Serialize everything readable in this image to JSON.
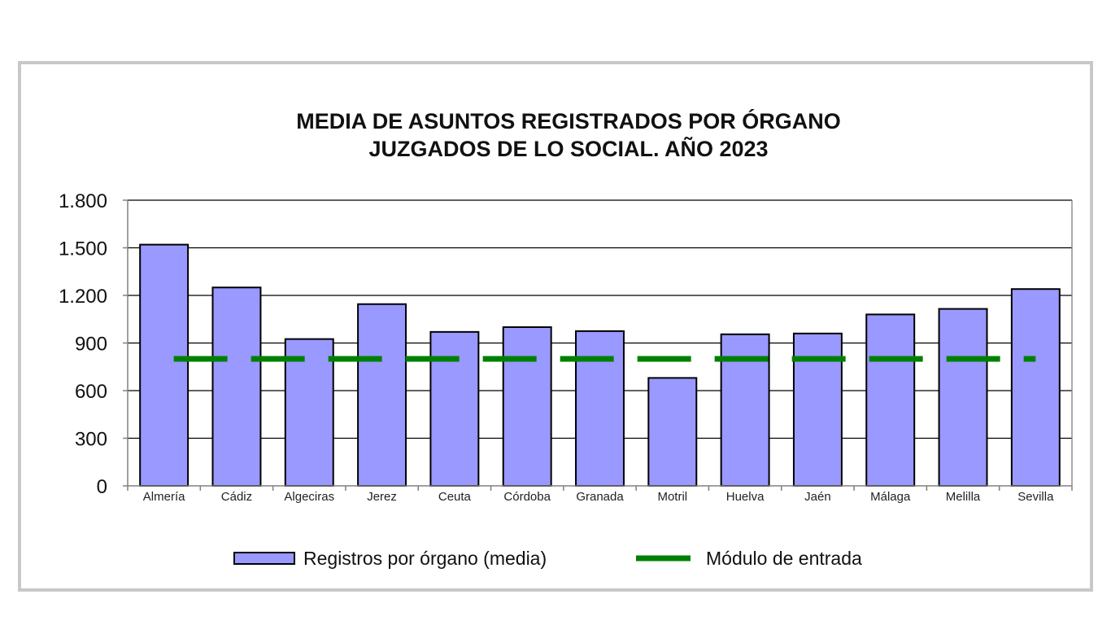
{
  "chart_data": {
    "type": "bar",
    "title_lines": [
      "MEDIA DE ASUNTOS REGISTRADOS POR ÓRGANO",
      "JUZGADOS DE LO SOCIAL. AÑO 2023"
    ],
    "categories": [
      "Almería",
      "Cádiz",
      "Algeciras",
      "Jerez",
      "Ceuta",
      "Córdoba",
      "Granada",
      "Motril",
      "Huelva",
      "Jaén",
      "Málaga",
      "Melilla",
      "Sevilla"
    ],
    "series": [
      {
        "name": "Registros por órgano (media)",
        "kind": "bar",
        "color": "#9999ff",
        "values": [
          1520,
          1250,
          925,
          1145,
          970,
          1000,
          975,
          680,
          955,
          960,
          1080,
          1115,
          1240
        ]
      },
      {
        "name": "Módulo de entrada",
        "kind": "dashed-line",
        "color": "#008000",
        "values": [
          800,
          800,
          800,
          800,
          800,
          800,
          800,
          800,
          800,
          800,
          800,
          800,
          800
        ]
      }
    ],
    "ylim": [
      0,
      1800
    ],
    "yticks": [
      0,
      300,
      600,
      900,
      1200,
      1500,
      1800
    ],
    "ytick_labels": [
      "0",
      "300",
      "600",
      "900",
      "1.200",
      "1.500",
      "1.800"
    ],
    "grid": true,
    "legend_position": "bottom"
  }
}
